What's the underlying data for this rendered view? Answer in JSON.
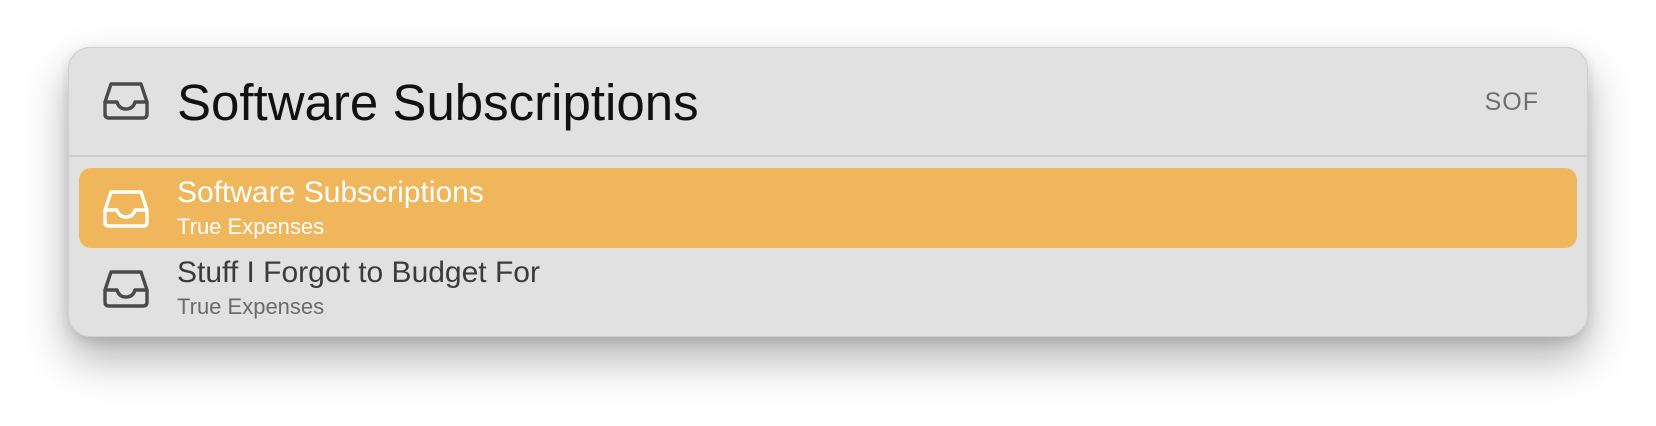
{
  "search": {
    "query": "Software Subscriptions",
    "icon": "inbox-tray-icon",
    "shortcut": "SOF"
  },
  "results": [
    {
      "title": "Software Subscriptions",
      "subtitle": "True Expenses",
      "icon": "inbox-tray-icon",
      "selected": true
    },
    {
      "title": "Stuff I Forgot to Budget For",
      "subtitle": "True Expenses",
      "icon": "inbox-tray-icon",
      "selected": false
    }
  ],
  "colors": {
    "selected_background": "#efb65c",
    "panel_background": "#e1e1e1",
    "icon_stroke": "#4a4a4a"
  }
}
